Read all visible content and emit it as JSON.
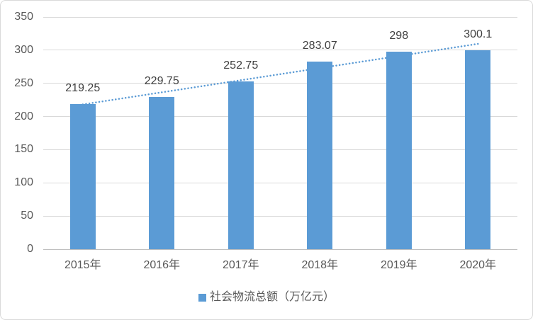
{
  "chart_data": {
    "type": "bar",
    "title": "",
    "categories": [
      "2015年",
      "2016年",
      "2017年",
      "2018年",
      "2019年",
      "2020年"
    ],
    "values": [
      219.25,
      229.75,
      252.75,
      283.07,
      298,
      300.1
    ],
    "data_labels": [
      "219.25",
      "229.75",
      "252.75",
      "283.07",
      "298",
      "300.1"
    ],
    "series_name": "社会物流总额（万亿元）",
    "xlabel": "",
    "ylabel": "",
    "ylim": [
      0,
      350
    ],
    "y_ticks": [
      0,
      50,
      100,
      150,
      200,
      250,
      300,
      350
    ],
    "grid": true,
    "legend": {
      "position": "bottom",
      "label": "社会物流总额（万亿元）"
    },
    "trendline": {
      "type": "linear",
      "style": "dotted",
      "start_value": 218.2,
      "end_value": 309.5
    },
    "colors": {
      "bar": "#5B9BD5",
      "trendline": "#5B9BD5",
      "gridline": "#D9D9D9",
      "axis_line": "#BFBFBF",
      "tick_text": "#595959",
      "data_label_text": "#404040",
      "legend_text": "#595959",
      "frame_border": "#D9D9D9",
      "background": "#FFFFFF"
    }
  }
}
